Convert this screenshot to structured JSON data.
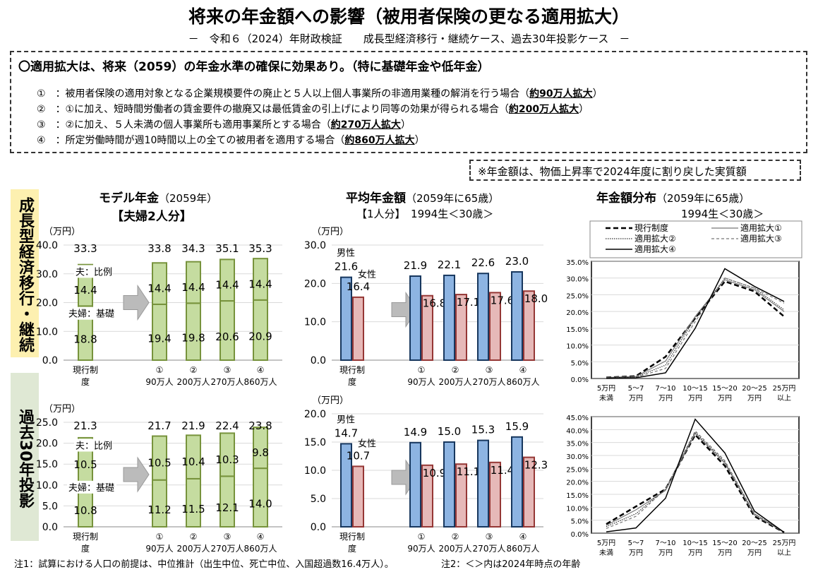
{
  "header": {
    "title": "将来の年金額への影響（被用者保険の更なる適用拡大）",
    "subtitle": "－　令和６（2024）年財政検証　　成長型経済移行・継続ケース、過去30年投影ケース　－"
  },
  "summary": {
    "headline": "〇適用拡大は、将来（2059）の年金水準の確保に効果あり。（特に基礎年金や低年金）",
    "items": [
      {
        "num": "①",
        "text": "：被用者保険の適用対象となる企業規模要件の廃止と５人以上個人事業所の非適用業種の解消を行う場合（",
        "emph": "約90万人拡大",
        "end": "）"
      },
      {
        "num": "②",
        "text": "：①に加え、短時間労働者の賃金要件の撤廃又は最低賃金の引上げにより同等の効果が得られる場合（",
        "emph": "約200万人拡大",
        "end": "）"
      },
      {
        "num": "③",
        "text": "：②に加え、５人未満の個人事業所も適用事業所とする場合（",
        "emph": "約270万人拡大",
        "end": "）"
      },
      {
        "num": "④",
        "text": "：所定労働時間が週10時間以上の全ての被用者を適用する場合（",
        "emph": "約860万人拡大",
        "end": "）"
      }
    ]
  },
  "note": "※年金額は、物価上昇率で2024年度に割り戻した実質額",
  "side_labels": {
    "growth": "成長型経済移行・継続",
    "past": "過去30年投影"
  },
  "titles": {
    "model": {
      "main": "モデル年金",
      "paren": "（2059年）",
      "sub": "【夫婦2人分】"
    },
    "avg": {
      "main": "平均年金額",
      "paren": "（2059年に65歳）",
      "sub": "【1人分】　1994生＜30歳＞"
    },
    "dist": {
      "main": "年金額分布",
      "paren": "（2059年に65歳）",
      "sub": "1994生＜30歳＞"
    }
  },
  "footer": {
    "note1": "注1：試算における人口の前提は、中位推計（出生中位、死亡中位、入国超過数16.4万人）。",
    "note2": "注2：＜＞内は2024年時点の年齢"
  },
  "colors": {
    "model_bar": "#c5dca0",
    "model_edge": "#77933c",
    "male": "#8db4e2",
    "male_edge": "#17375e",
    "female": "#e6b9b8",
    "female_edge": "#953735",
    "side_growth": "#fdf0b0",
    "side_past": "#dfe8d4"
  },
  "chart_data": [
    {
      "id": "model-growth",
      "type": "bar",
      "stacked": true,
      "unit_label": "（万円）",
      "ylim": [
        0,
        40
      ],
      "yticks": [
        "0.0",
        "10.0",
        "20.0",
        "30.0",
        "40.0"
      ],
      "categories": [
        [
          "現行制",
          "度"
        ],
        [
          "①",
          "90万人"
        ],
        [
          "②",
          "200万人"
        ],
        [
          "③",
          "270万人"
        ],
        [
          "④",
          "860万人"
        ]
      ],
      "series": [
        {
          "name": "夫婦：基礎",
          "values": [
            18.8,
            19.4,
            19.8,
            20.6,
            20.9
          ]
        },
        {
          "name": "夫：比例",
          "values": [
            14.4,
            14.4,
            14.4,
            14.4,
            14.4
          ]
        }
      ],
      "totals": [
        "33.3",
        "33.8",
        "34.3",
        "35.1",
        "35.3"
      ],
      "base_labels": [
        "18.8",
        "19.4",
        "19.8",
        "20.6",
        "20.9"
      ],
      "upper_labels": [
        "14.4",
        "14.4",
        "14.4",
        "14.4",
        "14.4"
      ]
    },
    {
      "id": "model-past",
      "type": "bar",
      "stacked": true,
      "unit_label": "（万円）",
      "ylim": [
        0,
        25
      ],
      "yticks": [
        "0.0",
        "5.0",
        "10.0",
        "15.0",
        "20.0",
        "25.0"
      ],
      "categories": [
        [
          "現行制",
          "度"
        ],
        [
          "①",
          "90万人"
        ],
        [
          "②",
          "200万人"
        ],
        [
          "③",
          "270万人"
        ],
        [
          "④",
          "860万人"
        ]
      ],
      "series": [
        {
          "name": "夫婦：基礎",
          "values": [
            10.8,
            11.2,
            11.5,
            12.1,
            14.0
          ]
        },
        {
          "name": "夫：比例",
          "values": [
            10.5,
            10.5,
            10.4,
            10.3,
            9.8
          ]
        }
      ],
      "totals": [
        "21.3",
        "21.7",
        "21.9",
        "22.4",
        "23.8"
      ],
      "base_labels": [
        "10.8",
        "11.2",
        "11.5",
        "12.1",
        "14.0"
      ],
      "upper_labels": [
        "10.5",
        "10.5",
        "10.4",
        "10.3",
        "9.8"
      ]
    },
    {
      "id": "avg-growth",
      "type": "bar",
      "unit_label": "（万円）",
      "ylim": [
        0,
        30
      ],
      "yticks": [
        "0.0",
        "10.0",
        "20.0",
        "30.0"
      ],
      "categories": [
        [
          "現行制",
          "度"
        ],
        [
          "①",
          "90万人"
        ],
        [
          "②",
          "200万人"
        ],
        [
          "③",
          "270万人"
        ],
        [
          "④",
          "860万人"
        ]
      ],
      "series": [
        {
          "name": "男性",
          "values": [
            21.6,
            21.9,
            22.1,
            22.6,
            23.0
          ],
          "labels": [
            "21.6",
            "21.9",
            "22.1",
            "22.6",
            "23.0"
          ]
        },
        {
          "name": "女性",
          "values": [
            16.4,
            16.8,
            17.1,
            17.6,
            18.0
          ],
          "labels": [
            "16.4",
            "16.8",
            "17.1",
            "17.6",
            "18.0"
          ]
        }
      ]
    },
    {
      "id": "avg-past",
      "type": "bar",
      "unit_label": "（万円）",
      "ylim": [
        0,
        20
      ],
      "yticks": [
        "0.0",
        "5.0",
        "10.0",
        "15.0",
        "20.0"
      ],
      "categories": [
        [
          "現行制",
          "度"
        ],
        [
          "①",
          "90万人"
        ],
        [
          "②",
          "200万人"
        ],
        [
          "③",
          "270万人"
        ],
        [
          "④",
          "860万人"
        ]
      ],
      "series": [
        {
          "name": "男性",
          "values": [
            14.7,
            14.9,
            15.0,
            15.3,
            15.9
          ],
          "labels": [
            "14.7",
            "14.9",
            "15.0",
            "15.3",
            "15.9"
          ]
        },
        {
          "name": "女性",
          "values": [
            10.7,
            10.9,
            11.1,
            11.4,
            12.3
          ],
          "labels": [
            "10.7",
            "10.9",
            "11.1",
            "11.4",
            "12.3"
          ]
        }
      ]
    },
    {
      "id": "dist-growth",
      "type": "line",
      "ylim": [
        0,
        35
      ],
      "yticks": [
        "0.0%",
        "5.0%",
        "10.0%",
        "15.0%",
        "20.0%",
        "25.0%",
        "30.0%",
        "35.0%"
      ],
      "categories": [
        [
          "5万円",
          "未満"
        ],
        [
          "5～7",
          "万円"
        ],
        [
          "7～10",
          "万円"
        ],
        [
          "10～15",
          "万円"
        ],
        [
          "15～20",
          "万円"
        ],
        [
          "20～25",
          "万円"
        ],
        [
          "25万円",
          "以上"
        ]
      ],
      "legend": "top",
      "series": [
        {
          "name": "現行制度",
          "values": [
            0.3,
            0.7,
            6.5,
            18,
            29,
            26,
            18.5
          ]
        },
        {
          "name": "適用拡大①",
          "values": [
            0.3,
            0.6,
            5.2,
            18.5,
            29.5,
            26.5,
            20
          ]
        },
        {
          "name": "適用拡大②",
          "values": [
            0.2,
            0.5,
            4,
            18,
            30,
            27,
            20.5
          ]
        },
        {
          "name": "適用拡大③",
          "values": [
            0.2,
            0.4,
            3,
            17,
            30,
            27,
            22.5
          ]
        },
        {
          "name": "適用拡大④",
          "values": [
            0.1,
            0.2,
            1.7,
            15,
            32.8,
            27.5,
            23
          ]
        }
      ]
    },
    {
      "id": "dist-past",
      "type": "line",
      "ylim": [
        0,
        45
      ],
      "yticks": [
        "0.0%",
        "5.0%",
        "10.0%",
        "15.0%",
        "20.0%",
        "25.0%",
        "30.0%",
        "35.0%",
        "40.0%",
        "45.0%"
      ],
      "categories": [
        [
          "5万円",
          "未満"
        ],
        [
          "5～7",
          "万円"
        ],
        [
          "7～10",
          "万円"
        ],
        [
          "10～15",
          "万円"
        ],
        [
          "15～20",
          "万円"
        ],
        [
          "20～25",
          "万円"
        ],
        [
          "25万円",
          "以上"
        ]
      ],
      "series": [
        {
          "name": "現行制度",
          "values": [
            3.5,
            10.3,
            17,
            38,
            26,
            6.5,
            0.3
          ]
        },
        {
          "name": "適用拡大①",
          "values": [
            3,
            9,
            16.5,
            38.5,
            27,
            7,
            0.3
          ]
        },
        {
          "name": "適用拡大②",
          "values": [
            2.5,
            7.5,
            17,
            39,
            27.5,
            7.5,
            0.3
          ]
        },
        {
          "name": "適用拡大③",
          "values": [
            1.8,
            6.5,
            17,
            39.5,
            28,
            7.5,
            0.3
          ]
        },
        {
          "name": "適用拡大④",
          "values": [
            0.5,
            2,
            13.5,
            44,
            31,
            8.5,
            0.3
          ]
        }
      ]
    }
  ],
  "annotations": {
    "husband_prop": "夫：比例",
    "couple_basic": "夫婦：基礎",
    "male": "男性",
    "female": "女性"
  }
}
